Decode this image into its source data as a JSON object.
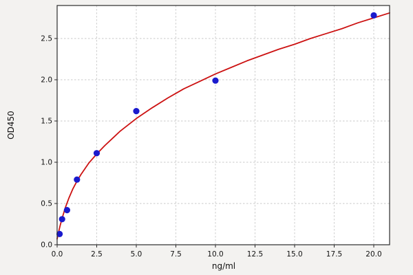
{
  "figure": {
    "background": "#f3f2f0",
    "plot_background": "#ffffff",
    "grid_color": "#c9c9c9",
    "spine_color": "#2b2b2b",
    "tick_label_color": "#111111"
  },
  "chart_data": {
    "type": "scatter",
    "title": "",
    "xlabel": "ng/ml",
    "ylabel": "OD450",
    "xlim": [
      0,
      21
    ],
    "ylim": [
      0,
      2.9
    ],
    "grid": true,
    "grid_style": "dashed",
    "legend": "none",
    "x_ticks": [
      0.0,
      2.5,
      5.0,
      7.5,
      10.0,
      12.5,
      15.0,
      17.5,
      20.0
    ],
    "x_tick_labels": [
      "0.0",
      "2.5",
      "5.0",
      "7.5",
      "10.0",
      "12.5",
      "15.0",
      "17.5",
      "20.0"
    ],
    "y_ticks": [
      0.0,
      0.5,
      1.0,
      1.5,
      2.0,
      2.5
    ],
    "y_tick_labels": [
      "0.0",
      "0.5",
      "1.0",
      "1.5",
      "2.0",
      "2.5"
    ],
    "series": [
      {
        "name": "standard-points",
        "type": "scatter",
        "marker": "circle",
        "color": "#1a1acd",
        "x": [
          0.156,
          0.313,
          0.625,
          1.25,
          2.5,
          5.0,
          10.0,
          20.0
        ],
        "y": [
          0.13,
          0.31,
          0.42,
          0.79,
          1.11,
          1.62,
          1.99,
          2.78
        ]
      },
      {
        "name": "fit-curve",
        "type": "line",
        "color": "#cc1111",
        "x": [
          0,
          0.1,
          0.2,
          0.3,
          0.5,
          0.75,
          1.0,
          1.25,
          1.5,
          2.0,
          2.5,
          3.0,
          3.5,
          4.0,
          5.0,
          6.0,
          7.0,
          8.0,
          9.0,
          10.0,
          11.0,
          12.0,
          13.0,
          14.0,
          15.0,
          16.0,
          17.0,
          18.0,
          19.0,
          20.0,
          21.0
        ],
        "y": [
          0.07,
          0.16,
          0.24,
          0.31,
          0.44,
          0.57,
          0.68,
          0.77,
          0.85,
          0.99,
          1.1,
          1.2,
          1.29,
          1.38,
          1.53,
          1.66,
          1.78,
          1.89,
          1.98,
          2.07,
          2.15,
          2.23,
          2.3,
          2.37,
          2.43,
          2.5,
          2.56,
          2.62,
          2.69,
          2.75,
          2.81
        ]
      }
    ]
  }
}
